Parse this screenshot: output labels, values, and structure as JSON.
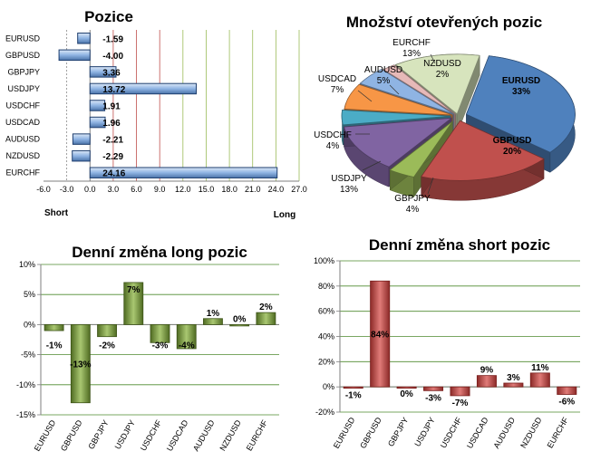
{
  "chart_data": [
    {
      "type": "bar",
      "orientation": "horizontal",
      "title": "Pozice",
      "categories": [
        "EURUSD",
        "GBPUSD",
        "GBPJPY",
        "USDJPY",
        "USDCHF",
        "USDCAD",
        "AUDUSD",
        "NZDUSD",
        "EURCHF"
      ],
      "values": [
        -1.59,
        -4.0,
        3.36,
        13.72,
        1.91,
        1.96,
        -2.21,
        -2.29,
        24.16
      ],
      "value_labels": [
        "-1.59",
        "-4.00",
        "3.36",
        "13.72",
        "1.91",
        "1.96",
        "-2.21",
        "-2.29",
        "24.16"
      ],
      "xlim": [
        -6.0,
        27.0
      ],
      "xticks": [
        "-6.0",
        "-3.0",
        "0.0",
        "3.0",
        "6.0",
        "9.0",
        "12.0",
        "15.0",
        "18.0",
        "21.0",
        "24.0",
        "27.0"
      ],
      "left_label": "Short",
      "right_label": "Long",
      "bar_color": "#8fb4e3",
      "bar_edge": "#1f3f6f",
      "grid_colors": [
        "#c0504d",
        "#c0504d",
        "#c0504d",
        "#9bbb59",
        "#9bbb59",
        "#9bbb59",
        "#9bbb59"
      ]
    },
    {
      "type": "pie",
      "title": "Množství otevřených pozic",
      "slices": [
        {
          "name": "EURUSD",
          "label": "33%",
          "value": 33,
          "color": "#4f81bd"
        },
        {
          "name": "GBPUSD",
          "label": "20%",
          "value": 20,
          "color": "#c0504d"
        },
        {
          "name": "GBPJPY",
          "label": "4%",
          "value": 4,
          "color": "#9bbb59"
        },
        {
          "name": "USDJPY",
          "label": "13%",
          "value": 13,
          "color": "#8064a2"
        },
        {
          "name": "USDCHF",
          "label": "4%",
          "value": 4,
          "color": "#4bacc6"
        },
        {
          "name": "USDCAD",
          "label": "7%",
          "value": 7,
          "color": "#f79646"
        },
        {
          "name": "AUDUSD",
          "label": "5%",
          "value": 5,
          "color": "#8fb4e3"
        },
        {
          "name": "NZDUSD",
          "label": "2%",
          "value": 2,
          "color": "#e6b9b8"
        },
        {
          "name": "EURCHF",
          "label": "13%",
          "value": 13,
          "color": "#d7e4bd"
        }
      ]
    },
    {
      "type": "bar",
      "title": "Denní změna long pozic",
      "categories": [
        "EURUSD",
        "GBPUSD",
        "GBPJPY",
        "USDJPY",
        "USDCHF",
        "USDCAD",
        "AUDUSD",
        "NZDUSD",
        "EURCHF"
      ],
      "values": [
        -1,
        -13,
        -2,
        7,
        -3,
        -4,
        1,
        0,
        2
      ],
      "value_labels": [
        "-1%",
        "-13%",
        "-2%",
        "7%",
        "-3%",
        "-4%",
        "1%",
        "0%",
        "2%"
      ],
      "ylim": [
        -15,
        10
      ],
      "yticks": [
        "10%",
        "5%",
        "0%",
        "-5%",
        "-10%",
        "-15%"
      ],
      "bar_color": "#77933c",
      "grid_color": "#4e8a2e"
    },
    {
      "type": "bar",
      "title": "Denní změna short pozic",
      "categories": [
        "EURUSD",
        "GBPUSD",
        "GBPJPY",
        "USDJPY",
        "USDCHF",
        "USDCAD",
        "AUDUSD",
        "NZDUSD",
        "EURCHF"
      ],
      "values": [
        -1,
        84,
        0,
        -3,
        -7,
        9,
        3,
        11,
        -6
      ],
      "value_labels": [
        "-1%",
        "84%",
        "0%",
        "-3%",
        "-7%",
        "9%",
        "3%",
        "11%",
        "-6%"
      ],
      "ylim": [
        -20,
        100
      ],
      "yticks": [
        "100%",
        "80%",
        "60%",
        "40%",
        "20%",
        "0%",
        "-20%"
      ],
      "bar_color": "#c0504d",
      "grid_color": "#4e8a2e"
    }
  ]
}
